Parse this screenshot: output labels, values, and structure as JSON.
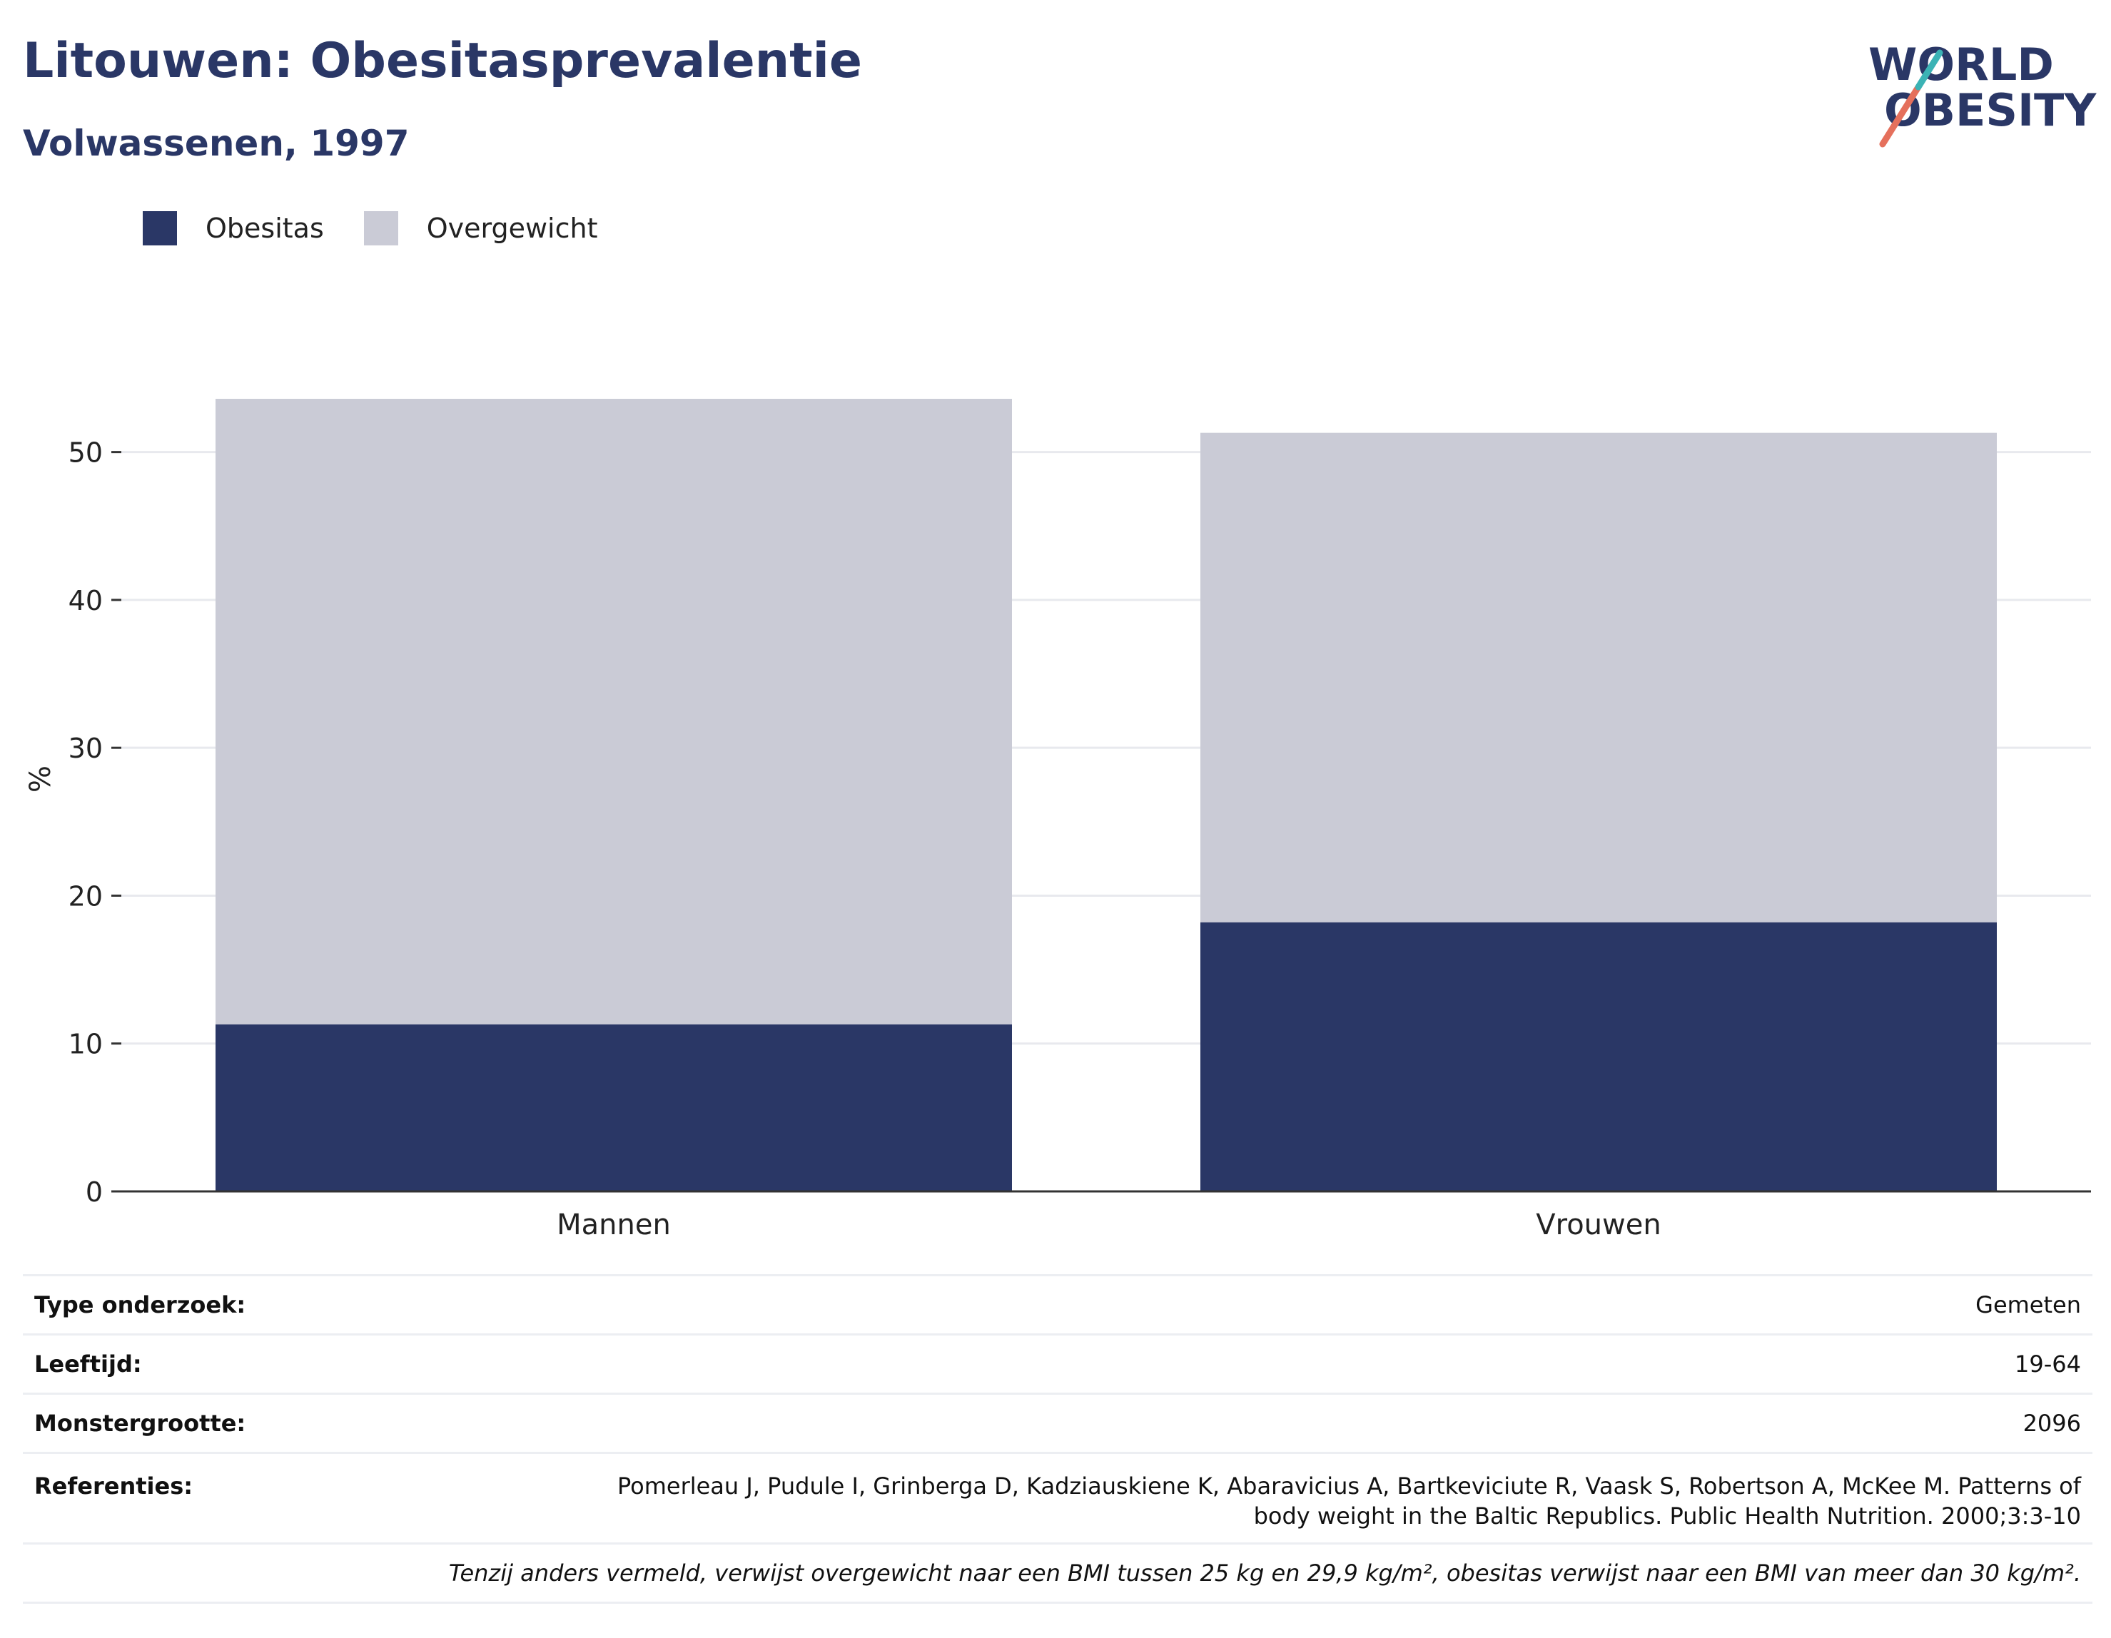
{
  "header": {
    "title": "Litouwen: Obesitasprevalentie",
    "subtitle": "Volwassenen, 1997"
  },
  "logo": {
    "line1": "WORLD",
    "line2": "OBESITY"
  },
  "colors": {
    "obesity": "#2a3766",
    "overweight": "#cacbd6",
    "title": "#2a3766",
    "logo_slash_teal": "#3bb3b5",
    "logo_slash_coral": "#e5705c"
  },
  "chart_data": {
    "type": "bar",
    "stacked": true,
    "categories": [
      "Mannen",
      "Vrouwen"
    ],
    "series": [
      {
        "name": "Obesitas",
        "values": [
          11.3,
          18.2
        ]
      },
      {
        "name": "Overgewicht",
        "values": [
          42.3,
          33.1
        ]
      }
    ],
    "ylabel": "%",
    "ylim": [
      0,
      55
    ],
    "yticks": [
      0,
      10,
      20,
      30,
      40,
      50
    ],
    "grid": true,
    "legend": "top-left"
  },
  "info": {
    "rows": [
      {
        "label": "Type onderzoek:",
        "value": "Gemeten"
      },
      {
        "label": "Leeftijd:",
        "value": "19-64"
      },
      {
        "label": "Monstergrootte:",
        "value": "2096"
      }
    ],
    "references_label": "Referenties:",
    "references": "Pomerleau J, Pudule I, Grinberga D, Kadziauskiene K, Abaravicius A, Bartkeviciute R, Vaask S, Robertson A, McKee M. Patterns of body weight in the Baltic Republics. Public Health Nutrition. 2000;3:3-10",
    "note": "Tenzij anders vermeld, verwijst overgewicht naar een BMI tussen 25 kg en 29,9 kg/m², obesitas verwijst naar een BMI van meer dan 30 kg/m²."
  }
}
